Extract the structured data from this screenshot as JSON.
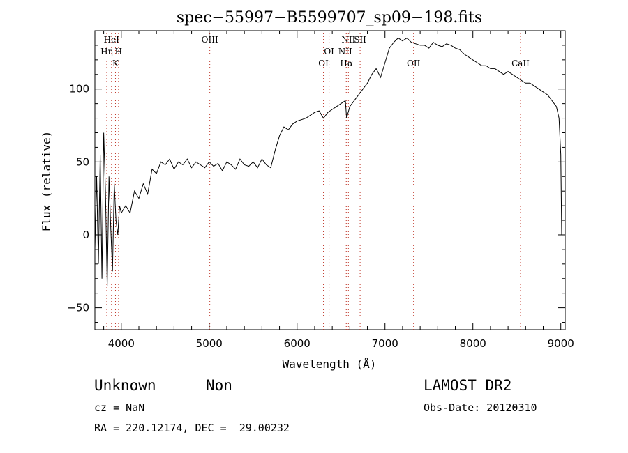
{
  "chart_data": {
    "type": "line",
    "title": "spec−55997−B5599707_sp09−198.fits",
    "xlabel": "Wavelength (Å)",
    "ylabel": "Flux (relative)",
    "xlim": [
      3700,
      9050
    ],
    "ylim": [
      -65,
      140
    ],
    "x_ticks": [
      4000,
      5000,
      6000,
      7000,
      8000,
      9000
    ],
    "y_ticks": [
      -50,
      0,
      50,
      100
    ],
    "series": [
      {
        "x": [
          3700,
          3720,
          3740,
          3760,
          3780,
          3800,
          3820,
          3840,
          3860,
          3880,
          3900,
          3920,
          3940,
          3960,
          3980,
          4000,
          4050,
          4100,
          4150,
          4200,
          4250,
          4300,
          4350,
          4400,
          4450,
          4500,
          4550,
          4600,
          4650,
          4700,
          4750,
          4800,
          4850,
          4900,
          4950,
          5000,
          5050,
          5100,
          5150,
          5200,
          5250,
          5300,
          5350,
          5400,
          5450,
          5500,
          5550,
          5600,
          5650,
          5700,
          5750,
          5800,
          5850,
          5900,
          5950,
          6000,
          6050,
          6100,
          6150,
          6200,
          6250,
          6300,
          6350,
          6400,
          6450,
          6500,
          6550,
          6563,
          6600,
          6650,
          6700,
          6750,
          6800,
          6850,
          6900,
          6950,
          7000,
          7050,
          7100,
          7150,
          7200,
          7250,
          7300,
          7350,
          7400,
          7450,
          7500,
          7550,
          7600,
          7650,
          7700,
          7750,
          7800,
          7850,
          7900,
          7950,
          8000,
          8050,
          8100,
          8150,
          8200,
          8250,
          8300,
          8350,
          8400,
          8450,
          8500,
          8550,
          8600,
          8650,
          8700,
          8750,
          8800,
          8850,
          8900,
          8950,
          8980,
          9000,
          9010
        ],
        "y": [
          -10,
          40,
          -20,
          55,
          -30,
          70,
          30,
          -35,
          40,
          5,
          -25,
          35,
          10,
          0,
          20,
          15,
          20,
          15,
          30,
          25,
          35,
          28,
          45,
          42,
          50,
          48,
          52,
          45,
          50,
          48,
          52,
          46,
          50,
          48,
          46,
          50,
          47,
          49,
          44,
          50,
          48,
          45,
          52,
          48,
          47,
          50,
          46,
          52,
          48,
          46,
          58,
          68,
          74,
          72,
          76,
          78,
          79,
          80,
          82,
          84,
          85,
          80,
          84,
          86,
          88,
          90,
          92,
          80,
          88,
          92,
          96,
          100,
          104,
          110,
          114,
          108,
          118,
          128,
          132,
          135,
          133,
          135,
          132,
          131,
          130,
          130,
          128,
          132,
          130,
          129,
          131,
          130,
          128,
          127,
          124,
          122,
          120,
          118,
          116,
          116,
          114,
          114,
          112,
          110,
          112,
          110,
          108,
          106,
          104,
          104,
          102,
          100,
          98,
          96,
          92,
          88,
          80,
          55,
          0
        ],
        "color": "#000000"
      }
    ],
    "line_markers": [
      {
        "label": "HeI",
        "wavelength": 3889,
        "tier": 0
      },
      {
        "label": "Hη",
        "wavelength": 3835,
        "tier": 1
      },
      {
        "label": "H",
        "wavelength": 3969,
        "tier": 1
      },
      {
        "label": "K",
        "wavelength": 3934,
        "tier": 2
      },
      {
        "label": "OIII",
        "wavelength": 5007,
        "tier": 0
      },
      {
        "label": "OI",
        "wavelength": 6364,
        "tier": 1
      },
      {
        "label": "OI",
        "wavelength": 6300,
        "tier": 2
      },
      {
        "label": "NII",
        "wavelength": 6584,
        "tier": 0
      },
      {
        "label": "SII",
        "wavelength": 6717,
        "tier": 0
      },
      {
        "label": "NII",
        "wavelength": 6548,
        "tier": 1
      },
      {
        "label": "Hα",
        "wavelength": 6563,
        "tier": 2
      },
      {
        "label": "OII",
        "wavelength": 7325,
        "tier": 2
      },
      {
        "label": "CaII",
        "wavelength": 8542,
        "tier": 2
      }
    ],
    "marker_color": "#c0392b",
    "grid": false
  },
  "footer": {
    "class_label": "Unknown",
    "subclass_label": "Non",
    "survey": "LAMOST DR2",
    "cz": "cz = NaN",
    "obs_date": "Obs-Date: 20120310",
    "coords": "RA = 220.12174, DEC =  29.00232"
  }
}
